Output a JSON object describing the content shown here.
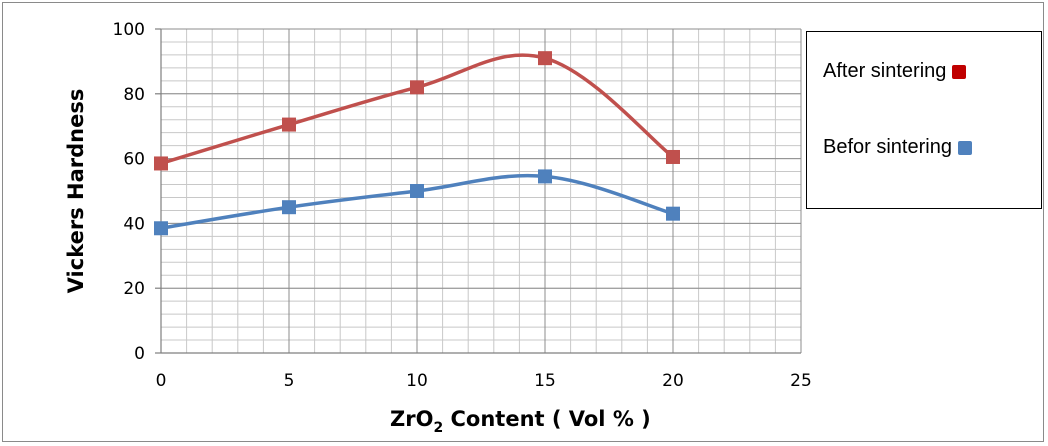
{
  "chart_data": {
    "type": "line",
    "xlabel": "ZrO",
    "xlabel_sub": "2",
    "xlabel_suffix": " Content ( Vol % )",
    "ylabel": "Vickers Hardness",
    "x": [
      0,
      5,
      10,
      15,
      20
    ],
    "xlim": [
      0,
      25
    ],
    "ylim": [
      0,
      100
    ],
    "x_ticks": [
      0,
      5,
      10,
      15,
      20,
      25
    ],
    "y_ticks": [
      0,
      20,
      40,
      60,
      80,
      100
    ],
    "grid": true,
    "legend_position": "right",
    "series": [
      {
        "name": "After sintering",
        "color": "#c0504d",
        "values": [
          58.5,
          70.5,
          82,
          91,
          60.5
        ]
      },
      {
        "name": "Befor sintering",
        "color": "#4f81bd",
        "values": [
          38.5,
          45,
          50,
          54.5,
          43
        ]
      }
    ],
    "legend_marker_colors": [
      "#c00000",
      "#4f81bd"
    ]
  }
}
